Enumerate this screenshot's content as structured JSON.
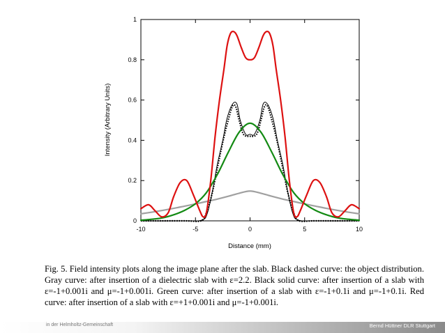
{
  "chart_data": {
    "type": "line",
    "title": "",
    "xlabel": "Distance (mm)",
    "ylabel": "Intensity (Arbitrary Units)",
    "xlim": [
      -10,
      10
    ],
    "ylim": [
      0,
      1
    ],
    "x_ticks": [
      -10,
      -5,
      0,
      5,
      10
    ],
    "y_ticks": [
      0,
      0.2,
      0.4,
      0.6,
      0.8,
      1
    ],
    "x_tick_labels": [
      "-10",
      "-5",
      "0",
      "5",
      "10"
    ],
    "y_tick_labels": [
      "0",
      "0.2",
      "0.4",
      "0.6",
      "0.8",
      "1"
    ],
    "grid": false,
    "series": [
      {
        "color": "#a0a0a0",
        "style": "solid",
        "x": [
          -10,
          -9,
          -8,
          -7,
          -6,
          -5,
          -4,
          -3,
          -2,
          -1,
          0,
          1,
          2,
          3,
          4,
          5,
          6,
          7,
          8,
          9,
          10
        ],
        "y": [
          0.035,
          0.043,
          0.052,
          0.062,
          0.073,
          0.084,
          0.096,
          0.108,
          0.122,
          0.137,
          0.148,
          0.137,
          0.122,
          0.108,
          0.096,
          0.084,
          0.073,
          0.062,
          0.052,
          0.043,
          0.035
        ]
      },
      {
        "color": "#000000",
        "style": "solid",
        "x": [
          -10,
          -6,
          -4.4,
          -3.9,
          -3.4,
          -3,
          -2.5,
          -2.1,
          -1.6,
          -1.2,
          -0.9,
          -0.4,
          0,
          0.4,
          0.9,
          1.2,
          1.6,
          2.1,
          2.5,
          3,
          3.4,
          3.9,
          4.4,
          6,
          10
        ],
        "y": [
          0,
          0,
          0.004,
          0.04,
          0.16,
          0.28,
          0.4,
          0.51,
          0.58,
          0.58,
          0.5,
          0.43,
          0.43,
          0.43,
          0.5,
          0.58,
          0.58,
          0.51,
          0.4,
          0.28,
          0.16,
          0.04,
          0.004,
          0,
          0
        ]
      },
      {
        "color": "#000000",
        "style": "dashed",
        "x": [
          -10,
          -6,
          -4.5,
          -4,
          -3.5,
          -3,
          -2.5,
          -2,
          -1.6,
          -1.3,
          -1,
          -0.6,
          0,
          0.6,
          1,
          1.3,
          1.6,
          2,
          2.5,
          3,
          3.5,
          4,
          4.5,
          6,
          10
        ],
        "y": [
          0,
          0,
          0,
          0.04,
          0.13,
          0.26,
          0.39,
          0.5,
          0.57,
          0.565,
          0.5,
          0.43,
          0.42,
          0.43,
          0.5,
          0.565,
          0.57,
          0.5,
          0.39,
          0.26,
          0.13,
          0.04,
          0,
          0,
          0
        ]
      },
      {
        "color": "#138a13",
        "style": "solid",
        "x": [
          -10,
          -9,
          -8,
          -7,
          -6,
          -5,
          -4,
          -3,
          -2,
          -1,
          0,
          1,
          2,
          3,
          4,
          5,
          6,
          7,
          8,
          9,
          10
        ],
        "y": [
          0.003,
          0.008,
          0.015,
          0.03,
          0.052,
          0.085,
          0.14,
          0.23,
          0.34,
          0.44,
          0.485,
          0.44,
          0.34,
          0.23,
          0.14,
          0.085,
          0.052,
          0.03,
          0.015,
          0.008,
          0.003
        ]
      },
      {
        "color": "#dd1111",
        "style": "solid",
        "x": [
          -10,
          -9.3,
          -8.7,
          -8.1,
          -7.5,
          -7,
          -6.4,
          -5.8,
          -5.2,
          -4.6,
          -4.3,
          -4,
          -3.6,
          -3.2,
          -2.8,
          -2.4,
          -2.1,
          -1.8,
          -1.5,
          -1.2,
          -0.8,
          -0.4,
          0,
          0.4,
          0.8,
          1.2,
          1.5,
          1.8,
          2.1,
          2.4,
          2.8,
          3.2,
          3.6,
          4,
          4.3,
          4.6,
          5.2,
          5.8,
          6.4,
          7,
          7.5,
          8.1,
          8.7,
          9.3,
          10
        ],
        "y": [
          0.06,
          0.08,
          0.05,
          0.02,
          0.04,
          0.12,
          0.19,
          0.2,
          0.13,
          0.05,
          0.02,
          0.04,
          0.2,
          0.42,
          0.6,
          0.75,
          0.87,
          0.93,
          0.94,
          0.92,
          0.86,
          0.81,
          0.8,
          0.81,
          0.86,
          0.92,
          0.94,
          0.93,
          0.87,
          0.75,
          0.6,
          0.42,
          0.2,
          0.04,
          0.02,
          0.05,
          0.13,
          0.2,
          0.19,
          0.12,
          0.04,
          0.02,
          0.05,
          0.08,
          0.06
        ]
      }
    ]
  },
  "caption": {
    "text": "Fig. 5.  Field intensity plots along the image plane after the slab.  Black dashed curve: the object distribution.  Gray curve: after insertion of a dielectric slab with ε=2.2.  Black solid curve: after insertion of a slab with ε=-1+0.001i and μ=-1+0.001i.  Green curve: after insertion of a slab with ε=-1+0.1i and μ=-1+0.1i.  Red curve: after insertion of a slab with ε=+1+0.001i and μ=-1+0.001i."
  },
  "footer": {
    "left_text": "in der Helmholtz-Gemeinschaft",
    "right_text": "Bernd Hüttner DLR Stuttgart"
  }
}
